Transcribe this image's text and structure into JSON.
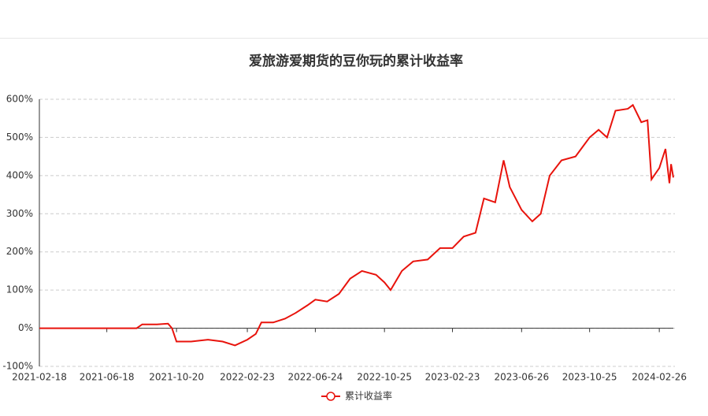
{
  "chart_data": {
    "type": "line",
    "title": "爱旅游爱期货的豆你玩的累计收益率",
    "x": [
      "2021-02-18",
      "2021-04-15",
      "2021-06-18",
      "2021-08-10",
      "2021-08-20",
      "2021-09-15",
      "2021-10-05",
      "2021-10-12",
      "2021-10-20",
      "2021-11-15",
      "2021-12-15",
      "2022-01-10",
      "2022-02-01",
      "2022-02-23",
      "2022-03-10",
      "2022-03-20",
      "2022-04-10",
      "2022-05-01",
      "2022-05-20",
      "2022-06-10",
      "2022-06-24",
      "2022-07-15",
      "2022-08-05",
      "2022-08-25",
      "2022-09-15",
      "2022-10-10",
      "2022-10-25",
      "2022-11-05",
      "2022-11-25",
      "2022-12-15",
      "2023-01-10",
      "2023-02-01",
      "2023-02-23",
      "2023-03-15",
      "2023-04-05",
      "2023-04-20",
      "2023-05-10",
      "2023-05-25",
      "2023-06-05",
      "2023-06-26",
      "2023-07-15",
      "2023-07-30",
      "2023-08-15",
      "2023-09-05",
      "2023-09-30",
      "2023-10-15",
      "2023-10-25",
      "2023-11-10",
      "2023-11-25",
      "2023-12-10",
      "2024-01-01",
      "2024-01-10",
      "2024-01-25",
      "2024-02-05",
      "2024-02-12",
      "2024-02-26",
      "2024-03-08",
      "2024-03-15",
      "2024-03-18",
      "2024-03-22"
    ],
    "series": [
      {
        "name": "累计收益率",
        "color": "#e8130c",
        "values": [
          0,
          0,
          0,
          0,
          10,
          10,
          12,
          0,
          -35,
          -35,
          -30,
          -35,
          -45,
          -30,
          -15,
          15,
          15,
          25,
          40,
          60,
          75,
          70,
          90,
          130,
          150,
          140,
          120,
          100,
          150,
          175,
          180,
          210,
          210,
          240,
          250,
          340,
          330,
          440,
          370,
          310,
          280,
          300,
          400,
          440,
          450,
          480,
          500,
          520,
          500,
          570,
          575,
          585,
          540,
          545,
          390,
          420,
          470,
          380,
          430,
          395
        ]
      }
    ],
    "xlim": [
      "2021-02-18",
      "2024-03-22"
    ],
    "xticks": [
      "2021-02-18",
      "2021-06-18",
      "2021-10-20",
      "2022-02-23",
      "2022-06-24",
      "2022-10-25",
      "2023-02-23",
      "2023-06-26",
      "2023-10-25",
      "2024-02-26"
    ],
    "ylim": [
      -100,
      600
    ],
    "yticks": [
      {
        "value": -100,
        "label": "-100%"
      },
      {
        "value": 0,
        "label": "0%"
      },
      {
        "value": 100,
        "label": "100%"
      },
      {
        "value": 200,
        "label": "200%"
      },
      {
        "value": 300,
        "label": "300%"
      },
      {
        "value": 400,
        "label": "400%"
      },
      {
        "value": 500,
        "label": "500%"
      },
      {
        "value": 600,
        "label": "600%"
      }
    ],
    "grid": true
  }
}
